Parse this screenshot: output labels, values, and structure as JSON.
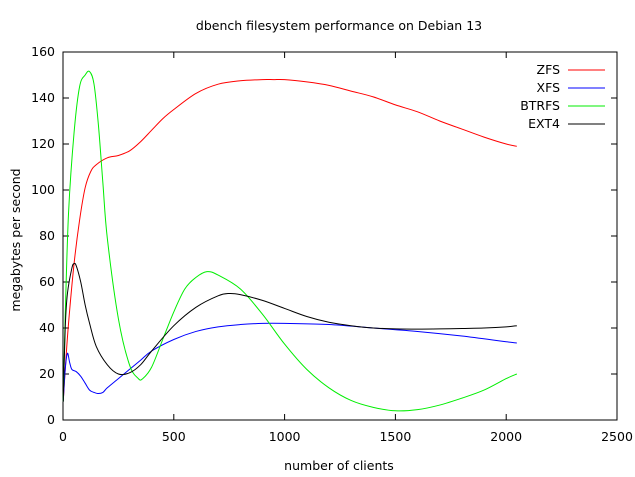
{
  "chart_data": {
    "type": "line",
    "title": "dbench filesystem performance on Debian 13",
    "xlabel": "number of clients",
    "ylabel": "megabytes per second",
    "xlim": [
      0,
      2500
    ],
    "ylim": [
      0,
      160
    ],
    "xticks": [
      0,
      500,
      1000,
      1500,
      2000,
      2500
    ],
    "yticks": [
      0,
      20,
      40,
      60,
      80,
      100,
      120,
      140,
      160
    ],
    "grid": false,
    "legend_position": "top-right",
    "series": [
      {
        "name": "ZFS",
        "color": "#ff0000",
        "x": [
          1,
          10,
          25,
          50,
          75,
          100,
          125,
          150,
          200,
          250,
          300,
          350,
          400,
          450,
          500,
          600,
          700,
          800,
          900,
          950,
          1000,
          1100,
          1200,
          1300,
          1400,
          1500,
          1600,
          1700,
          1800,
          1900,
          2000,
          2048
        ],
        "y": [
          8,
          22,
          42,
          68,
          87,
          101,
          108,
          111,
          114,
          115,
          117,
          121,
          126,
          131,
          135,
          142,
          146,
          147.5,
          148,
          148,
          148,
          147,
          145.5,
          143,
          140.5,
          137,
          134,
          130,
          126.5,
          123,
          120,
          119
        ]
      },
      {
        "name": "XFS",
        "color": "#0000ff",
        "x": [
          1,
          10,
          20,
          30,
          40,
          60,
          80,
          100,
          120,
          140,
          160,
          180,
          200,
          250,
          300,
          350,
          400,
          500,
          600,
          700,
          800,
          900,
          1000,
          1200,
          1400,
          1600,
          1800,
          2000,
          2048
        ],
        "y": [
          8,
          22,
          29,
          25,
          22,
          21,
          19,
          16,
          13,
          12,
          11.5,
          12,
          14,
          18,
          22,
          26,
          30,
          35,
          38.5,
          40.5,
          41.5,
          42,
          42,
          41.5,
          40,
          38.5,
          36.5,
          34,
          33.5
        ]
      },
      {
        "name": "BTRFS",
        "color": "#00ee00",
        "x": [
          1,
          10,
          25,
          50,
          75,
          100,
          120,
          140,
          160,
          180,
          200,
          250,
          300,
          340,
          360,
          400,
          450,
          500,
          550,
          600,
          650,
          700,
          800,
          900,
          1000,
          1100,
          1200,
          1300,
          1400,
          1500,
          1600,
          1700,
          1800,
          1900,
          2000,
          2048
        ],
        "y": [
          8,
          45,
          90,
          125,
          145,
          150,
          151.5,
          146,
          128,
          103,
          79,
          44,
          24,
          18,
          18,
          23,
          35,
          47,
          57,
          62,
          64.5,
          63,
          57,
          46,
          33,
          22,
          14,
          8.5,
          5.5,
          4,
          4.5,
          6.5,
          9.5,
          13,
          18,
          20
        ]
      },
      {
        "name": "EXT4",
        "color": "#000000",
        "x": [
          1,
          10,
          20,
          40,
          50,
          60,
          80,
          100,
          120,
          150,
          200,
          250,
          300,
          350,
          400,
          500,
          600,
          700,
          750,
          800,
          900,
          1000,
          1100,
          1200,
          1300,
          1400,
          1500,
          1600,
          1700,
          1800,
          1900,
          2000,
          2048
        ],
        "y": [
          8,
          40,
          55,
          66,
          68,
          67,
          60,
          50,
          42,
          32,
          24,
          20,
          20.5,
          24,
          30,
          41,
          49,
          54,
          55,
          54.5,
          52,
          48.5,
          45,
          42.5,
          41,
          40,
          39.6,
          39.5,
          39.6,
          39.8,
          40,
          40.5,
          41
        ]
      }
    ]
  }
}
